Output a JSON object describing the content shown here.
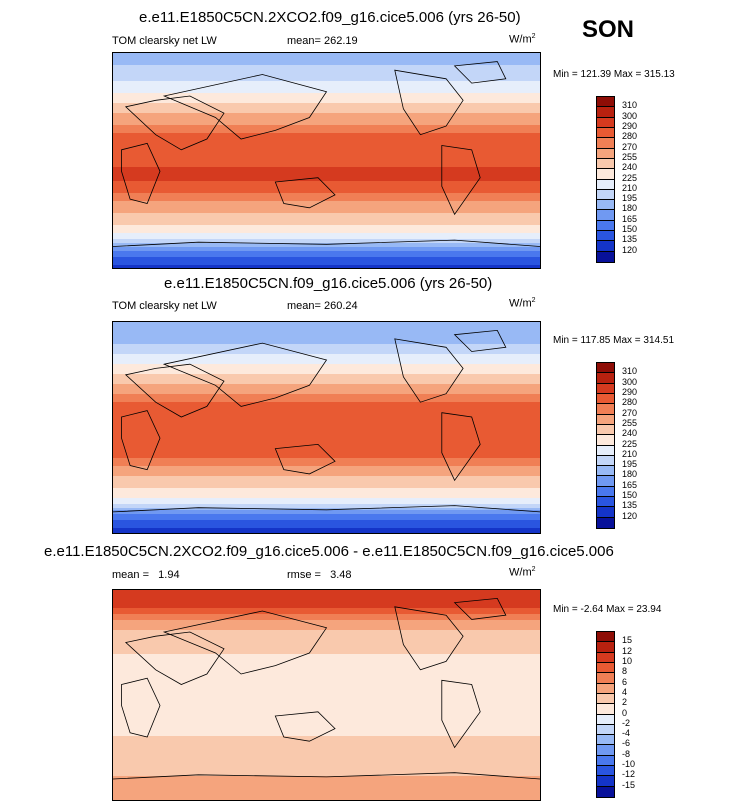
{
  "season": "SON",
  "units_base": "W/m",
  "units_exp": "2",
  "panels": [
    {
      "title": "e.e11.E1850C5CN.2XCO2.f09_g16.cice5.006 (yrs 26-50)",
      "left_label": "TOM clearsky net LW",
      "center_label": "mean= 262.19",
      "minmax": "Min = 121.39 Max = 315.13"
    },
    {
      "title": "e.e11.E1850C5CN.f09_g16.cice5.006 (yrs 26-50)",
      "left_label": "TOM clearsky net LW",
      "center_label": "mean= 260.24",
      "minmax": "Min = 117.85 Max = 314.51"
    },
    {
      "title": "e.e11.E1850C5CN.2XCO2.f09_g16.cice5.006 - e.e11.E1850C5CN.f09_g16.cice5.006",
      "left_label": "mean =   1.94",
      "center_label": "rmse =   3.48",
      "minmax": "Min = -2.64 Max = 23.94"
    }
  ],
  "colors": {
    "abs_scale": [
      "#08119a",
      "#1434c8",
      "#2a55e0",
      "#4a78ee",
      "#7099f2",
      "#98b9f5",
      "#c3d6f8",
      "#e6eefb",
      "#fde9dc",
      "#f9c9ad",
      "#f5a47d",
      "#f07f55",
      "#e85a33",
      "#d53a1f",
      "#b8210f",
      "#8e0d06"
    ],
    "diff_scale": [
      "#08119a",
      "#1434c8",
      "#2a55e0",
      "#4a78ee",
      "#7099f2",
      "#98b9f5",
      "#c3d6f8",
      "#e6eefb",
      "#fde9dc",
      "#f9c9ad",
      "#f5a47d",
      "#f07f55",
      "#e85a33",
      "#d53a1f",
      "#b8210f",
      "#8e0d06"
    ]
  },
  "chart_data": [
    {
      "type": "heatmap",
      "title": "e.e11.E1850C5CN.2XCO2.f09_g16.cice5.006 (yrs 26-50)",
      "variable": "TOM clearsky net LW",
      "units": "W/m2",
      "mean": 262.19,
      "min": 121.39,
      "max": 315.13,
      "contour_levels": [
        120,
        135,
        150,
        165,
        180,
        195,
        210,
        225,
        240,
        255,
        270,
        280,
        290,
        300,
        310
      ],
      "zonal_profile": {
        "lat": [
          -90,
          -75,
          -65,
          -55,
          -45,
          -35,
          -25,
          -15,
          -5,
          5,
          15,
          25,
          35,
          45,
          55,
          65,
          75,
          90
        ],
        "value": [
          130,
          165,
          215,
          238,
          252,
          268,
          283,
          292,
          290,
          285,
          289,
          278,
          262,
          245,
          228,
          212,
          198,
          190
        ]
      }
    },
    {
      "type": "heatmap",
      "title": "e.e11.E1850C5CN.f09_g16.cice5.006 (yrs 26-50)",
      "variable": "TOM clearsky net LW",
      "units": "W/m2",
      "mean": 260.24,
      "min": 117.85,
      "max": 314.51,
      "contour_levels": [
        120,
        135,
        150,
        165,
        180,
        195,
        210,
        225,
        240,
        255,
        270,
        280,
        290,
        300,
        310
      ],
      "zonal_profile": {
        "lat": [
          -90,
          -75,
          -65,
          -55,
          -45,
          -35,
          -25,
          -15,
          -5,
          5,
          15,
          25,
          35,
          45,
          55,
          65,
          75,
          90
        ],
        "value": [
          125,
          160,
          212,
          236,
          250,
          266,
          281,
          290,
          288,
          283,
          287,
          276,
          260,
          242,
          224,
          206,
          188,
          180
        ]
      }
    },
    {
      "type": "heatmap",
      "title": "e.e11.E1850C5CN.2XCO2.f09_g16.cice5.006 - e.e11.E1850C5CN.f09_g16.cice5.006",
      "units": "W/m2",
      "mean": 1.94,
      "rmse": 3.48,
      "min": -2.64,
      "max": 23.94,
      "contour_levels": [
        -15,
        -12,
        -10,
        -8,
        -6,
        -4,
        -2,
        0,
        2,
        4,
        6,
        8,
        10,
        12,
        15
      ],
      "zonal_profile": {
        "lat": [
          -90,
          -75,
          -65,
          -55,
          -45,
          -35,
          -25,
          -15,
          -5,
          5,
          15,
          25,
          35,
          45,
          55,
          65,
          75,
          90
        ],
        "value": [
          5,
          5,
          3,
          2,
          2,
          2,
          1,
          1,
          1,
          1,
          1,
          1,
          2,
          3,
          4,
          6,
          10,
          12
        ]
      }
    }
  ]
}
